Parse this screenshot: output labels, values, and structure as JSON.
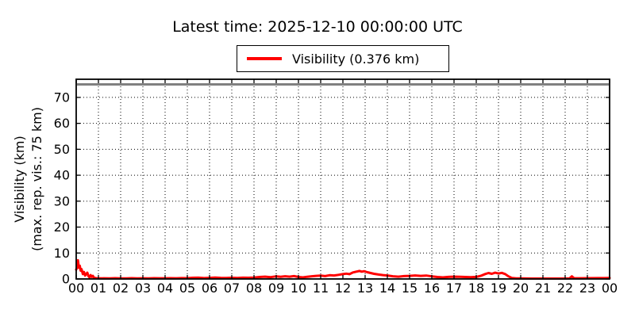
{
  "title": "Latest time: 2025-12-10 00:00:00 UTC",
  "legend": {
    "label": "Visibility (0.376 km)",
    "line_color": "#ff0000"
  },
  "axes": {
    "ylabel_line1": "Visibility (km)",
    "ylabel_line2": "(max. rep. vis.: 75 km)"
  },
  "colors": {
    "series_red": "#ff0000",
    "max_line_gray": "#808080",
    "grid": "#000000",
    "background": "#ffffff"
  },
  "chart_data": {
    "type": "line",
    "title": "Latest time: 2025-12-10 00:00:00 UTC",
    "xlabel": "",
    "ylabel": "Visibility (km) (max. rep. vis.: 75 km)",
    "xlim": [
      0,
      24
    ],
    "ylim": [
      0,
      77
    ],
    "grid": true,
    "grid_style": "dotted",
    "legend_position": "top-center",
    "x_ticks": [
      0,
      1,
      2,
      3,
      4,
      5,
      6,
      7,
      8,
      9,
      10,
      11,
      12,
      13,
      14,
      15,
      16,
      17,
      18,
      19,
      20,
      21,
      22,
      23,
      24
    ],
    "x_tick_labels": [
      "00",
      "01",
      "02",
      "03",
      "04",
      "05",
      "06",
      "07",
      "08",
      "09",
      "10",
      "11",
      "12",
      "13",
      "14",
      "15",
      "16",
      "17",
      "18",
      "19",
      "20",
      "21",
      "22",
      "23",
      "00"
    ],
    "y_ticks": [
      0,
      10,
      20,
      30,
      40,
      50,
      60,
      70
    ],
    "y_tick_labels": [
      "0",
      "10",
      "20",
      "30",
      "40",
      "50",
      "60",
      "70"
    ],
    "annotations": [
      {
        "type": "hline",
        "y": 75,
        "color": "#808080",
        "meaning": "max reported visibility 75 km"
      }
    ],
    "latest_value_km": 0.376,
    "series": [
      {
        "name": "Visibility (0.376 km)",
        "color": "#ff0000",
        "units": "km",
        "x_units": "hour (UTC)",
        "points": [
          [
            0,
            3.6
          ],
          [
            0.05,
            4.6
          ],
          [
            0.08,
            7.2
          ],
          [
            0.12,
            4.3
          ],
          [
            0.16,
            5.1
          ],
          [
            0.2,
            3.2
          ],
          [
            0.24,
            3.8
          ],
          [
            0.3,
            1.9
          ],
          [
            0.35,
            2.7
          ],
          [
            0.4,
            1.3
          ],
          [
            0.45,
            1.9
          ],
          [
            0.5,
            2.4
          ],
          [
            0.55,
            1.1
          ],
          [
            0.6,
            0.6
          ],
          [
            0.65,
            1.5
          ],
          [
            0.7,
            0.8
          ],
          [
            0.75,
            1.2
          ],
          [
            0.8,
            0.45
          ],
          [
            0.9,
            0.3
          ],
          [
            1,
            0.22
          ],
          [
            1.25,
            0.28
          ],
          [
            1.5,
            0.22
          ],
          [
            1.75,
            0.3
          ],
          [
            2,
            0.25
          ],
          [
            2.25,
            0.22
          ],
          [
            2.5,
            0.3
          ],
          [
            2.75,
            0.25
          ],
          [
            3,
            0.28
          ],
          [
            3.25,
            0.24
          ],
          [
            3.5,
            0.3
          ],
          [
            3.75,
            0.26
          ],
          [
            4,
            0.28
          ],
          [
            4.25,
            0.32
          ],
          [
            4.5,
            0.28
          ],
          [
            4.75,
            0.34
          ],
          [
            5,
            0.3
          ],
          [
            5.25,
            0.45
          ],
          [
            5.5,
            0.5
          ],
          [
            5.75,
            0.35
          ],
          [
            6,
            0.42
          ],
          [
            6.25,
            0.55
          ],
          [
            6.5,
            0.42
          ],
          [
            6.75,
            0.38
          ],
          [
            7,
            0.45
          ],
          [
            7.25,
            0.4
          ],
          [
            7.5,
            0.5
          ],
          [
            7.75,
            0.45
          ],
          [
            8,
            0.52
          ],
          [
            8.25,
            0.75
          ],
          [
            8.5,
            0.9
          ],
          [
            8.75,
            0.7
          ],
          [
            9,
            1
          ],
          [
            9.2,
            0.85
          ],
          [
            9.4,
            1.05
          ],
          [
            9.6,
            0.9
          ],
          [
            9.8,
            1.1
          ],
          [
            10,
            0.75
          ],
          [
            10.2,
            0.6
          ],
          [
            10.4,
            0.85
          ],
          [
            10.6,
            1.05
          ],
          [
            10.8,
            1.2
          ],
          [
            11,
            1.3
          ],
          [
            11.2,
            1.1
          ],
          [
            11.4,
            1.45
          ],
          [
            11.6,
            1.35
          ],
          [
            11.8,
            1.6
          ],
          [
            12,
            1.85
          ],
          [
            12.15,
            2.05
          ],
          [
            12.3,
            1.85
          ],
          [
            12.45,
            2.5
          ],
          [
            12.6,
            2.8
          ],
          [
            12.75,
            3.1
          ],
          [
            12.85,
            2.8
          ],
          [
            12.95,
            3
          ],
          [
            13.1,
            2.6
          ],
          [
            13.25,
            2.3
          ],
          [
            13.4,
            2
          ],
          [
            13.6,
            1.7
          ],
          [
            13.8,
            1.5
          ],
          [
            14,
            1.35
          ],
          [
            14.25,
            1.05
          ],
          [
            14.5,
            0.9
          ],
          [
            14.75,
            1.1
          ],
          [
            15,
            1.2
          ],
          [
            15.25,
            1.35
          ],
          [
            15.5,
            1.2
          ],
          [
            15.75,
            1.3
          ],
          [
            16,
            1
          ],
          [
            16.25,
            0.75
          ],
          [
            16.5,
            0.6
          ],
          [
            16.75,
            0.8
          ],
          [
            17,
            0.9
          ],
          [
            17.25,
            0.85
          ],
          [
            17.5,
            0.75
          ],
          [
            17.75,
            0.7
          ],
          [
            18,
            0.8
          ],
          [
            18.2,
            1.2
          ],
          [
            18.4,
            1.9
          ],
          [
            18.55,
            2.3
          ],
          [
            18.7,
            2
          ],
          [
            18.85,
            2.4
          ],
          [
            19,
            2.1
          ],
          [
            19.15,
            2.35
          ],
          [
            19.3,
            1.9
          ],
          [
            19.45,
            1
          ],
          [
            19.6,
            0.4
          ],
          [
            19.8,
            0.25
          ],
          [
            20,
            0.2
          ],
          [
            20.5,
            0.15
          ],
          [
            21,
            0.15
          ],
          [
            21.5,
            0.15
          ],
          [
            22,
            0.15
          ],
          [
            22.2,
            0.25
          ],
          [
            22.3,
            1
          ],
          [
            22.4,
            0.3
          ],
          [
            22.6,
            0.28
          ],
          [
            23,
            0.3
          ],
          [
            23.5,
            0.33
          ],
          [
            24,
            0.376
          ]
        ]
      }
    ]
  }
}
